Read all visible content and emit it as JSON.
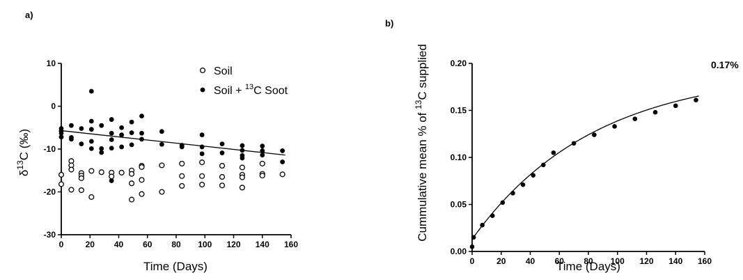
{
  "chart_data": [
    {
      "type": "scatter",
      "panel_label": "a)",
      "xlabel": "Time (Days)",
      "ylabel": {
        "prefix": "δ",
        "sup": "13",
        "main": "C (‰)"
      },
      "xlim": [
        0,
        160
      ],
      "ylim": [
        -30,
        10
      ],
      "xticks": [
        "0",
        "20",
        "40",
        "60",
        "80",
        "100",
        "120",
        "140",
        "160"
      ],
      "yticks": [
        "-30",
        "-20",
        "-10",
        "0",
        "10"
      ],
      "grid": false,
      "legend_position": "top-right",
      "series": [
        {
          "name": "Soil",
          "marker": "open-circle",
          "points": [
            [
              0,
              -16
            ],
            [
              0,
              -18.2
            ],
            [
              7,
              -12.8
            ],
            [
              7,
              -13.8
            ],
            [
              7,
              -14.8
            ],
            [
              7,
              -19.5
            ],
            [
              14,
              -15.6
            ],
            [
              14,
              -16.2
            ],
            [
              14,
              -16.8
            ],
            [
              14,
              -19.6
            ],
            [
              21,
              -15.1
            ],
            [
              21,
              -21.2
            ],
            [
              28,
              -15.4
            ],
            [
              35,
              -15.5
            ],
            [
              35,
              -16.4
            ],
            [
              42,
              -15.5
            ],
            [
              49,
              -15
            ],
            [
              49,
              -15.8
            ],
            [
              49,
              -18
            ],
            [
              49,
              -21.8
            ],
            [
              56,
              -13.9
            ],
            [
              56,
              -14.2
            ],
            [
              56,
              -17.2
            ],
            [
              56,
              -20.5
            ],
            [
              70,
              -13.8
            ],
            [
              70,
              -20
            ],
            [
              84,
              -13.4
            ],
            [
              84,
              -16.3
            ],
            [
              84,
              -18.6
            ],
            [
              98,
              -13.1
            ],
            [
              98,
              -16.3
            ],
            [
              98,
              -18.3
            ],
            [
              112,
              -13.9
            ],
            [
              112,
              -16.5
            ],
            [
              112,
              -18.5
            ],
            [
              126,
              -14.3
            ],
            [
              126,
              -16
            ],
            [
              126,
              -16.6
            ],
            [
              126,
              -19
            ],
            [
              140,
              -13.4
            ],
            [
              140,
              -15.8
            ],
            [
              140,
              -16.2
            ],
            [
              154,
              -15.9
            ]
          ]
        },
        {
          "name": {
            "pre": "Soil + ",
            "sup": "13",
            "post": "C Soot"
          },
          "marker": "filled-circle",
          "points": [
            [
              0,
              -5.2
            ],
            [
              0,
              -5.8
            ],
            [
              0,
              -6.3
            ],
            [
              0,
              -7.2
            ],
            [
              7,
              -4.5
            ],
            [
              7,
              -7.3
            ],
            [
              7,
              -7.7
            ],
            [
              14,
              -5.2
            ],
            [
              14,
              -8.8
            ],
            [
              21,
              -3.5
            ],
            [
              21,
              -5.4
            ],
            [
              21,
              -8.2
            ],
            [
              21,
              -9.9
            ],
            [
              21,
              3.5
            ],
            [
              28,
              -4.5
            ],
            [
              28,
              -9.9
            ],
            [
              28,
              -10.8
            ],
            [
              35,
              -3.1
            ],
            [
              35,
              -6.3
            ],
            [
              35,
              -7.8
            ],
            [
              35,
              -9.8
            ],
            [
              35,
              -17.4
            ],
            [
              42,
              -5
            ],
            [
              42,
              -6.7
            ],
            [
              42,
              -9.5
            ],
            [
              49,
              -3.7
            ],
            [
              49,
              -6.2
            ],
            [
              49,
              -9
            ],
            [
              56,
              -2.3
            ],
            [
              56,
              -6.3
            ],
            [
              56,
              -7.7
            ],
            [
              70,
              -5.9
            ],
            [
              70,
              -8.9
            ],
            [
              84,
              -9.1
            ],
            [
              84,
              -9.5
            ],
            [
              98,
              -6.7
            ],
            [
              98,
              -9.5
            ],
            [
              98,
              -11.1
            ],
            [
              112,
              -8.8
            ],
            [
              112,
              -10.9
            ],
            [
              126,
              -9.2
            ],
            [
              126,
              -10.3
            ],
            [
              126,
              -11.5
            ],
            [
              126,
              -12.1
            ],
            [
              140,
              -9.3
            ],
            [
              140,
              -10.4
            ],
            [
              140,
              -11.4
            ],
            [
              154,
              -10.4
            ],
            [
              154,
              -13
            ]
          ]
        }
      ],
      "trend_line": {
        "x": [
          0,
          156
        ],
        "y": [
          -5.7,
          -11.4
        ]
      }
    },
    {
      "type": "line",
      "panel_label": "b)",
      "xlabel": "Time (Days)",
      "ylabel": {
        "pre": "Cummulative mean % of ",
        "sup": "13",
        "post": "C supplied"
      },
      "xlim": [
        0,
        160
      ],
      "ylim": [
        0,
        0.2
      ],
      "xticks": [
        "0",
        "20",
        "40",
        "60",
        "80",
        "100",
        "120",
        "140",
        "160"
      ],
      "yticks": [
        "0.00",
        "0.05",
        "0.10",
        "0.15",
        "0.20"
      ],
      "grid": false,
      "points": [
        [
          0,
          0.005
        ],
        [
          1,
          0.015
        ],
        [
          7,
          0.028
        ],
        [
          14,
          0.038
        ],
        [
          21,
          0.052
        ],
        [
          28,
          0.062
        ],
        [
          35,
          0.071
        ],
        [
          42,
          0.081
        ],
        [
          49,
          0.092
        ],
        [
          56,
          0.105
        ],
        [
          70,
          0.115
        ],
        [
          84,
          0.124
        ],
        [
          98,
          0.133
        ],
        [
          112,
          0.141
        ],
        [
          126,
          0.148
        ],
        [
          140,
          0.155
        ],
        [
          154,
          0.161
        ]
      ],
      "fit_curve": {
        "a": 0.013,
        "b": 0.18,
        "k": 0.012
      },
      "annotation": "0.17%"
    }
  ]
}
